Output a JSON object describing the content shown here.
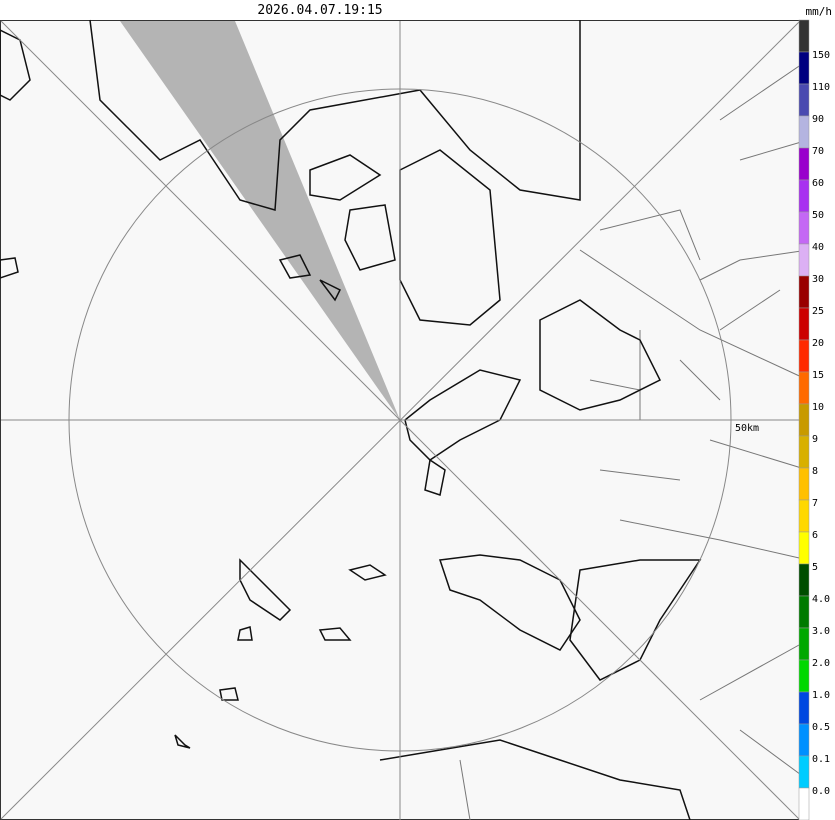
{
  "header": {
    "timestamp": "2026.04.07.19:15",
    "unit": "mm/h"
  },
  "map": {
    "range_label": "50km"
  },
  "legend": {
    "labels": [
      "150",
      "110",
      "90",
      "70",
      "60",
      "50",
      "40",
      "30",
      "25",
      "20",
      "15",
      "10",
      "9",
      "8",
      "7",
      "6",
      "5",
      "4.0",
      "3.0",
      "2.0",
      "1.0",
      "0.5",
      "0.1",
      "0.0"
    ],
    "colors": [
      "#333333",
      "#000080",
      "#4a4ab0",
      "#b4b4e0",
      "#9900cc",
      "#a830f0",
      "#c468f4",
      "#dcb0f4",
      "#990000",
      "#cc0000",
      "#ff2a00",
      "#ff6a00",
      "#c89a00",
      "#d8b000",
      "#ffc000",
      "#ffd800",
      "#ffff00",
      "#004d00",
      "#007a00",
      "#00a800",
      "#00d800",
      "#0048e0",
      "#0090ff",
      "#00ccff",
      "#ffffff"
    ]
  }
}
